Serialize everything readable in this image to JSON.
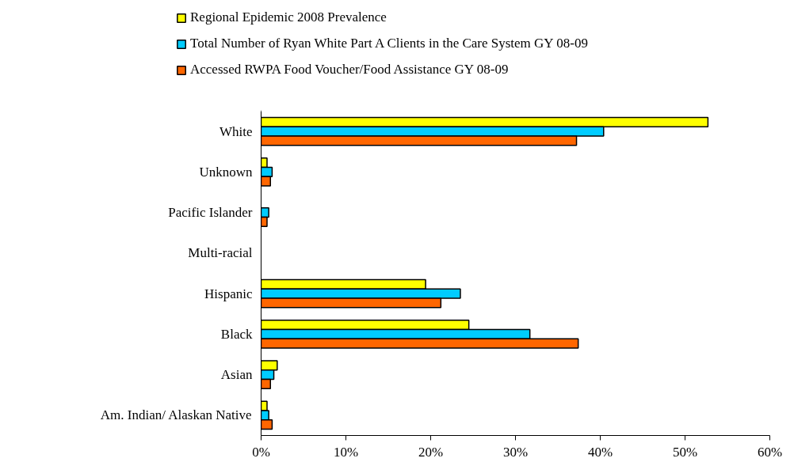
{
  "chart_data": {
    "type": "bar",
    "orientation": "horizontal",
    "categories": [
      "White",
      "Unknown",
      "Pacific Islander",
      "Multi-racial",
      "Hispanic",
      "Black",
      "Asian",
      "Am. Indian/ Alaskan Native"
    ],
    "series": [
      {
        "name": "Regional Epidemic 2008 Prevalence",
        "color": "#ffff00",
        "values": [
          52.7,
          0.7,
          null,
          null,
          19.4,
          24.5,
          1.9,
          0.7
        ]
      },
      {
        "name": "Total Number of Ryan White Part A Clients in the Care System GY 08-09",
        "color": "#00ccff",
        "values": [
          40.4,
          1.3,
          0.9,
          null,
          23.5,
          31.7,
          1.5,
          0.9
        ]
      },
      {
        "name": "Accessed RWPA Food Voucher/Food Assistance GY 08-09",
        "color": "#ff6600",
        "values": [
          37.2,
          1.1,
          0.7,
          null,
          21.2,
          37.4,
          1.1,
          1.3
        ]
      }
    ],
    "xlim": [
      0,
      60
    ],
    "xticks": [
      {
        "value": 0,
        "label": "0%"
      },
      {
        "value": 10,
        "label": "10%"
      },
      {
        "value": 20,
        "label": "20%"
      },
      {
        "value": 30,
        "label": "30%"
      },
      {
        "value": 40,
        "label": "40%"
      },
      {
        "value": 50,
        "label": "50%"
      },
      {
        "value": 60,
        "label": "60%"
      }
    ],
    "grid": false,
    "legend": "top left"
  }
}
